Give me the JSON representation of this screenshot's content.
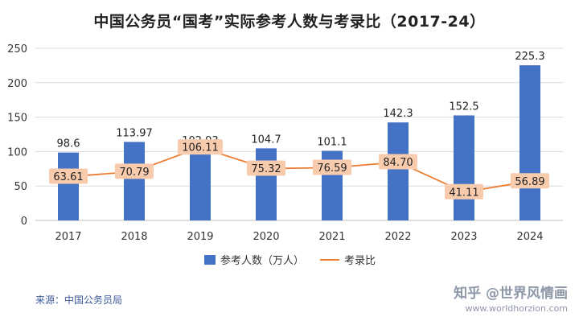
{
  "page": {
    "title": "中国公务员“国考”实际参考人数与考录比（2017-24）"
  },
  "chart_data": {
    "type": "bar",
    "title": "中国公务员“国考”实际参考人数与考录比（2017-24）",
    "categories": [
      "2017",
      "2018",
      "2019",
      "2020",
      "2021",
      "2022",
      "2023",
      "2024"
    ],
    "series": [
      {
        "name": "参考人数（万人）",
        "type": "bar",
        "values": [
          98.6,
          113.97,
          102.93,
          104.7,
          101.1,
          142.3,
          152.5,
          225.3
        ],
        "labels": [
          "98.6",
          "113.97",
          "102.93",
          "104.7",
          "101.1",
          "142.3",
          "152.5",
          "225.3"
        ]
      },
      {
        "name": "考录比",
        "type": "line",
        "values": [
          63.61,
          70.79,
          106.11,
          75.32,
          76.59,
          84.7,
          41.11,
          56.89
        ],
        "labels": [
          "63.61",
          "70.79",
          "106.11",
          "75.32",
          "76.59",
          "84.70",
          "41.11",
          "56.89"
        ]
      }
    ],
    "yticks": [
      "0",
      "50",
      "100",
      "150",
      "200",
      "250"
    ],
    "ylim": [
      0,
      250
    ],
    "grid": true,
    "legend": "bottom",
    "colors": {
      "bar": "#4472c4",
      "line": "#ed7d31",
      "label_bg": "#f8cbad"
    }
  },
  "footer": {
    "source": "来源：中国公务员局",
    "watermark": "知乎 @世界风情画",
    "watermark_url": "www.worldhorzion.com"
  }
}
